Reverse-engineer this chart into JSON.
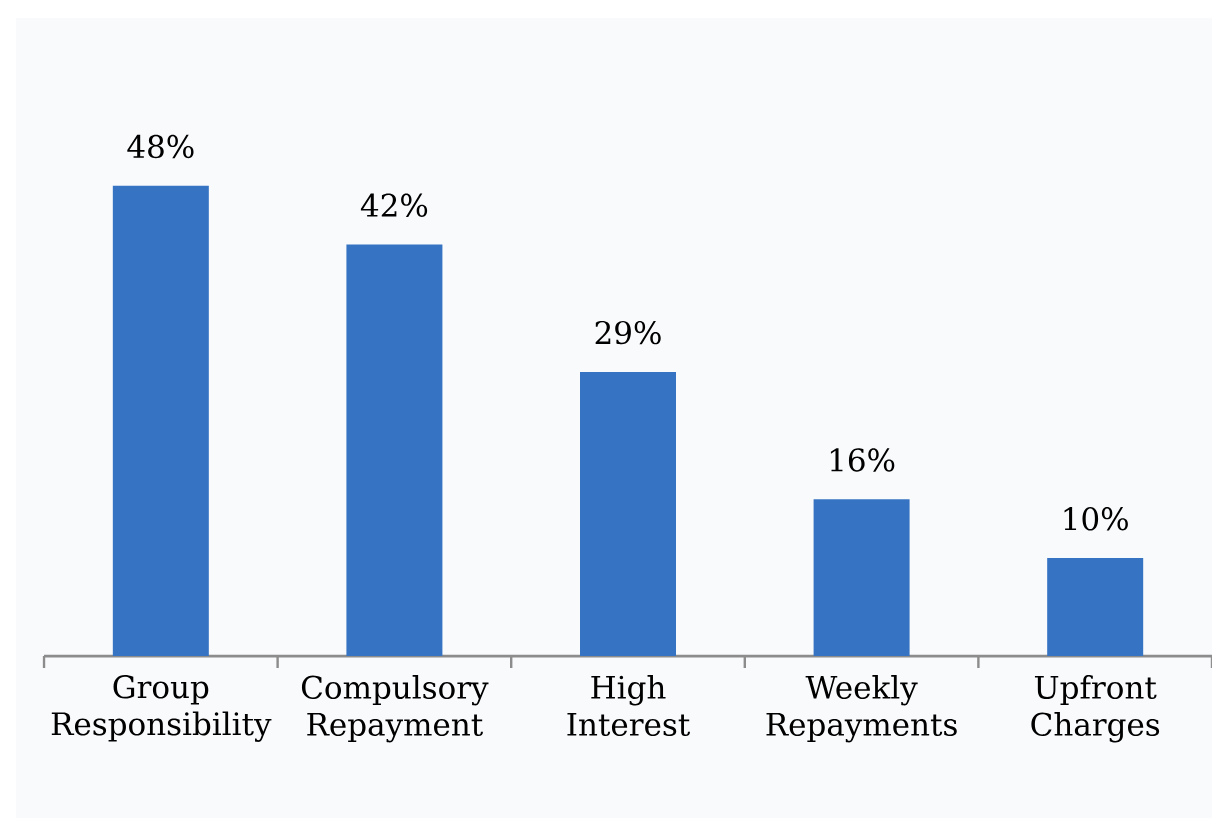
{
  "chart_data": {
    "type": "bar",
    "categories": [
      "Group Responsibility",
      "Compulsory Repayment",
      "High Interest",
      "Weekly Repayments",
      "Upfront Charges"
    ],
    "values": [
      48,
      42,
      29,
      16,
      10
    ],
    "value_labels": [
      "48%",
      "42%",
      "29%",
      "16%",
      "10%"
    ],
    "color": "#3673c2"
  }
}
